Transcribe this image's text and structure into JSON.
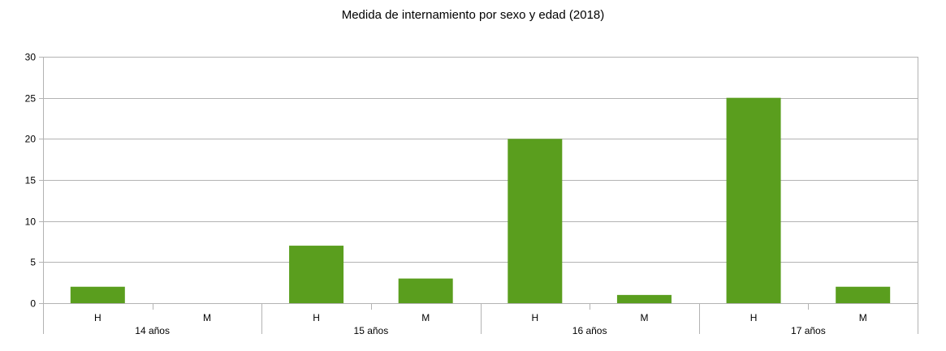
{
  "chart_data": {
    "type": "bar",
    "title": "Medida de internamiento por sexo y edad (2018)",
    "xlabel": "",
    "ylabel": "",
    "ylim": [
      0,
      30
    ],
    "yticks": [
      0,
      5,
      10,
      15,
      20,
      25,
      30
    ],
    "grid": true,
    "legend": "none",
    "categories": [
      {
        "group": "14 años",
        "label": "H"
      },
      {
        "group": "14 años",
        "label": "M"
      },
      {
        "group": "15 años",
        "label": "H"
      },
      {
        "group": "15 años",
        "label": "M"
      },
      {
        "group": "16 años",
        "label": "H"
      },
      {
        "group": "16 años",
        "label": "M"
      },
      {
        "group": "17 años",
        "label": "H"
      },
      {
        "group": "17 años",
        "label": "M"
      }
    ],
    "groups": [
      "14 años",
      "15 años",
      "16 años",
      "17 años"
    ],
    "values": [
      2,
      0,
      7,
      3,
      20,
      1,
      25,
      2
    ],
    "bar_color": "#5a9e1e",
    "grid_color": "#b3b3b3"
  }
}
